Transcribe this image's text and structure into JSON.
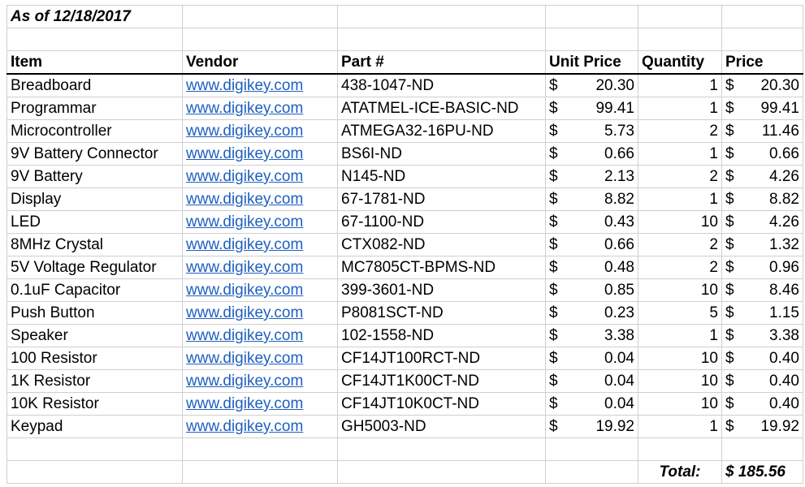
{
  "title": "As of 12/18/2017",
  "headers": {
    "item": "Item",
    "vendor": "Vendor",
    "part": "Part #",
    "unit_price": "Unit Price",
    "quantity": "Quantity",
    "price": "Price"
  },
  "currency_symbol": "$",
  "rows": [
    {
      "item": "Breadboard",
      "vendor": "www.digikey.com",
      "part": "438-1047-ND",
      "unit_price": "20.30",
      "quantity": "1",
      "price": "20.30"
    },
    {
      "item": "Programmar",
      "vendor": "www.digikey.com",
      "part": "ATATMEL-ICE-BASIC-ND",
      "unit_price": "99.41",
      "quantity": "1",
      "price": "99.41"
    },
    {
      "item": "Microcontroller",
      "vendor": "www.digikey.com",
      "part": "ATMEGA32-16PU-ND",
      "unit_price": "5.73",
      "quantity": "2",
      "price": "11.46"
    },
    {
      "item": "9V Battery Connector",
      "vendor": "www.digikey.com",
      "part": "BS6I-ND",
      "unit_price": "0.66",
      "quantity": "1",
      "price": "0.66"
    },
    {
      "item": "9V Battery",
      "vendor": "www.digikey.com",
      "part": "N145-ND",
      "unit_price": "2.13",
      "quantity": "2",
      "price": "4.26"
    },
    {
      "item": "Display",
      "vendor": "www.digikey.com",
      "part": "67-1781-ND",
      "unit_price": "8.82",
      "quantity": "1",
      "price": "8.82"
    },
    {
      "item": "LED",
      "vendor": "www.digikey.com",
      "part": "67-1100-ND",
      "unit_price": "0.43",
      "quantity": "10",
      "price": "4.26"
    },
    {
      "item": "8MHz Crystal",
      "vendor": "www.digikey.com",
      "part": "CTX082-ND",
      "unit_price": "0.66",
      "quantity": "2",
      "price": "1.32"
    },
    {
      "item": "5V Voltage Regulator",
      "vendor": "www.digikey.com",
      "part": "MC7805CT-BPMS-ND",
      "unit_price": "0.48",
      "quantity": "2",
      "price": "0.96"
    },
    {
      "item": "0.1uF Capacitor",
      "vendor": "www.digikey.com",
      "part": "399-3601-ND",
      "unit_price": "0.85",
      "quantity": "10",
      "price": "8.46"
    },
    {
      "item": "Push Button",
      "vendor": "www.digikey.com",
      "part": "P8081SCT-ND",
      "unit_price": "0.23",
      "quantity": "5",
      "price": "1.15"
    },
    {
      "item": "Speaker",
      "vendor": "www.digikey.com",
      "part": "102-1558-ND",
      "unit_price": "3.38",
      "quantity": "1",
      "price": "3.38"
    },
    {
      "item": "100 Resistor",
      "vendor": "www.digikey.com",
      "part": "CF14JT100RCT-ND",
      "unit_price": "0.04",
      "quantity": "10",
      "price": "0.40"
    },
    {
      "item": "1K Resistor",
      "vendor": "www.digikey.com",
      "part": "CF14JT1K00CT-ND",
      "unit_price": "0.04",
      "quantity": "10",
      "price": "0.40"
    },
    {
      "item": "10K Resistor",
      "vendor": "www.digikey.com",
      "part": "CF14JT10K0CT-ND",
      "unit_price": "0.04",
      "quantity": "10",
      "price": "0.40"
    },
    {
      "item": "Keypad",
      "vendor": "www.digikey.com",
      "part": "GH5003-ND",
      "unit_price": "19.92",
      "quantity": "1",
      "price": "19.92"
    }
  ],
  "total": {
    "label": "Total:",
    "value": "$ 185.56"
  },
  "colors": {
    "link": "#1f5fbf",
    "gridline": "#cfcfcf"
  }
}
